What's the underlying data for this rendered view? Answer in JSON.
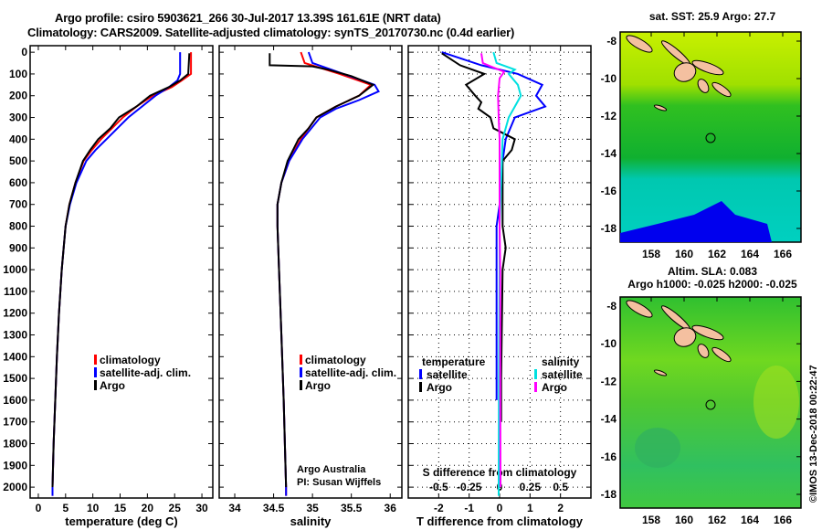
{
  "title_line1": "Argo profile: csiro 5903621_266 30-Jul-2017 13.39S 161.61E (NRT data)",
  "title_line2": "Climatology: CARS2009. Satellite-adjusted climatology: synTS_20170730.nc (0.4d earlier)",
  "colors": {
    "clim": "#ff0000",
    "sat": "#0000ff",
    "argo": "#000000",
    "sal_sat": "#00e0e0",
    "sal_argo": "#ff00ff"
  },
  "chart_data": [
    {
      "type": "line",
      "name": "temperature",
      "xlabel": "temperature (deg C)",
      "xlim": [
        -1.5,
        32
      ],
      "ylim": [
        2050,
        -30
      ],
      "xticks": [
        0,
        5,
        10,
        15,
        20,
        25,
        30
      ],
      "yticks": [
        0,
        100,
        200,
        300,
        400,
        500,
        600,
        700,
        800,
        900,
        1000,
        1100,
        1200,
        1300,
        1400,
        1500,
        1600,
        1700,
        1800,
        1900,
        2000
      ],
      "legend": [
        "climatology",
        "satellite-adj. clim.",
        "Argo"
      ],
      "series": [
        {
          "name": "climatology",
          "color": "clim",
          "depth": [
            0,
            100,
            130,
            160,
            200,
            250,
            300,
            350,
            400,
            450,
            500,
            600,
            700,
            800,
            1000,
            1200,
            1400,
            1600,
            1800,
            2000,
            2040
          ],
          "values": [
            28,
            28,
            26.3,
            24.5,
            21,
            18,
            15.5,
            13.5,
            11.5,
            9.8,
            8.3,
            6.8,
            5.7,
            5,
            4.3,
            3.8,
            3.4,
            3.1,
            2.8,
            2.6,
            2.6
          ]
        },
        {
          "name": "satellite-adj. clim.",
          "color": "sat",
          "depth": [
            0,
            100,
            130,
            160,
            200,
            250,
            300,
            350,
            400,
            450,
            500,
            600,
            700,
            800,
            1000,
            1200,
            1400,
            1600,
            1800,
            2000,
            2040
          ],
          "values": [
            26,
            26,
            25.5,
            24,
            21.5,
            19,
            16.5,
            14.5,
            12.5,
            10.5,
            8.8,
            7,
            5.8,
            5,
            4.3,
            3.8,
            3.4,
            3.1,
            2.8,
            2.6,
            2.6
          ]
        },
        {
          "name": "Argo",
          "color": "argo",
          "depth": [
            5,
            100,
            130,
            160,
            200,
            250,
            300,
            350,
            400,
            450,
            500,
            600,
            700,
            800,
            1000,
            1200,
            1400,
            1600,
            1800,
            2000
          ],
          "values": [
            27.7,
            27.5,
            26,
            24,
            20.5,
            18,
            14.8,
            13.2,
            11,
            9.5,
            8.2,
            6.8,
            5.7,
            5,
            4.3,
            3.8,
            3.4,
            3.1,
            2.8,
            2.6
          ]
        }
      ]
    },
    {
      "type": "line",
      "name": "salinity",
      "xlabel": "salinity",
      "xlim": [
        33.8,
        36.15
      ],
      "ylim": [
        2050,
        -30
      ],
      "xticks": [
        34,
        34.5,
        35,
        35.5,
        36
      ],
      "legend": [
        "climatology",
        "satellite-adj. clim.",
        "Argo"
      ],
      "annotation": [
        "Argo Australia",
        "PI: Susan Wijffels"
      ],
      "series": [
        {
          "name": "climatology",
          "color": "clim",
          "depth": [
            0,
            50,
            100,
            150,
            200,
            250,
            300,
            400,
            500,
            600,
            700,
            800,
            1000,
            1300,
            1600,
            2000,
            2040
          ],
          "values": [
            34.85,
            34.9,
            35.35,
            35.75,
            35.6,
            35.3,
            35.05,
            34.85,
            34.7,
            34.6,
            34.55,
            34.55,
            34.57,
            34.6,
            34.63,
            34.66,
            34.66
          ]
        },
        {
          "name": "satellite-adj. clim.",
          "color": "sat",
          "depth": [
            0,
            50,
            100,
            150,
            180,
            220,
            260,
            300,
            400,
            500,
            600,
            700,
            800,
            1000,
            1300,
            1600,
            2000,
            2040
          ],
          "values": [
            34.95,
            35.0,
            35.4,
            35.8,
            35.85,
            35.6,
            35.3,
            35.1,
            34.87,
            34.7,
            34.6,
            34.55,
            34.55,
            34.57,
            34.6,
            34.63,
            34.66,
            34.66
          ]
        },
        {
          "name": "Argo",
          "color": "argo",
          "depth": [
            5,
            60,
            65,
            80,
            110,
            150,
            200,
            250,
            300,
            350,
            400,
            500,
            600,
            700,
            800,
            1000,
            1300,
            1600,
            2000
          ],
          "values": [
            34.45,
            34.45,
            35.0,
            35.2,
            35.5,
            35.78,
            35.6,
            35.3,
            35.05,
            34.95,
            34.82,
            34.68,
            34.6,
            34.55,
            34.55,
            34.57,
            34.6,
            34.63,
            34.66
          ]
        }
      ]
    },
    {
      "type": "line",
      "name": "differences",
      "xlabel": "T difference from climatology",
      "x2label": "S difference from climatology",
      "xlim": [
        -3,
        3
      ],
      "x2lim": [
        -1.5,
        1.5
      ],
      "ylim": [
        2050,
        -30
      ],
      "xticks": [
        -2,
        -1,
        0,
        1,
        2
      ],
      "x2ticks": [
        "-0.5",
        "-0.25",
        "0",
        "0.25",
        "0.5"
      ],
      "legend_t": {
        "title": "temperature",
        "items": [
          "satellite",
          "Argo"
        ]
      },
      "legend_s": {
        "title": "salinity",
        "items": [
          "satellite",
          "Argo"
        ]
      },
      "series": [
        {
          "name": "T satellite",
          "color": "sat",
          "depth": [
            0,
            60,
            100,
            150,
            200,
            250,
            300,
            400,
            500,
            600,
            700,
            800,
            1000,
            1500,
            1600
          ],
          "values": [
            -1.9,
            -0.6,
            0.6,
            1.4,
            1.2,
            1.5,
            0.5,
            0.2,
            0.1,
            0.05,
            0,
            -0.1,
            -0.1,
            -0.1,
            -0.1
          ]
        },
        {
          "name": "T Argo",
          "color": "argo",
          "depth": [
            5,
            60,
            100,
            150,
            200,
            230,
            260,
            300,
            350,
            400,
            450,
            500,
            600,
            800,
            900,
            1000,
            1500,
            1700
          ],
          "values": [
            -1.9,
            -1.3,
            -0.5,
            -1.1,
            -0.8,
            -0.6,
            -0.7,
            -0.3,
            -0.2,
            0.5,
            0.4,
            0.1,
            0.1,
            0.1,
            0.2,
            0.1,
            0.05,
            0.05
          ]
        },
        {
          "name": "S satellite",
          "color": "sal_sat",
          "depth": [
            0,
            50,
            80,
            100,
            150,
            200,
            250,
            300,
            400,
            600,
            800,
            1000,
            1500,
            2000,
            2040
          ],
          "values": [
            -0.2,
            -0.1,
            0.5,
            0.3,
            0.6,
            0.7,
            0.5,
            0.3,
            0.1,
            0.05,
            0,
            0,
            -0.02,
            -0.03,
            -0.03
          ]
        },
        {
          "name": "S Argo",
          "color": "sal_argo",
          "depth": [
            5,
            50,
            65,
            90,
            120,
            200,
            300,
            400,
            600,
            800,
            1000,
            1500,
            2000
          ],
          "values": [
            -0.6,
            -0.55,
            -0.3,
            0.15,
            0,
            -0.05,
            -0.03,
            0,
            0,
            0,
            0.02,
            0.02,
            0.03
          ]
        }
      ]
    }
  ],
  "map1": {
    "title": "sat. SST: 25.9 Argo: 27.7",
    "lat_ticks": [
      "-8",
      "-10",
      "-12",
      "-14",
      "-16",
      "-18"
    ],
    "lon_ticks": [
      "158",
      "160",
      "162",
      "164",
      "166"
    ]
  },
  "map2": {
    "title1": "Altim. SLA: 0.083",
    "title2": "Argo h1000: -0.025 h2000: -0.025",
    "lat_ticks": [
      "-8",
      "-10",
      "-12",
      "-14",
      "-16",
      "-18"
    ],
    "lon_ticks": [
      "158",
      "160",
      "162",
      "164",
      "166"
    ]
  },
  "credit": "©IMOS 13-Dec-2018 00:22:47"
}
